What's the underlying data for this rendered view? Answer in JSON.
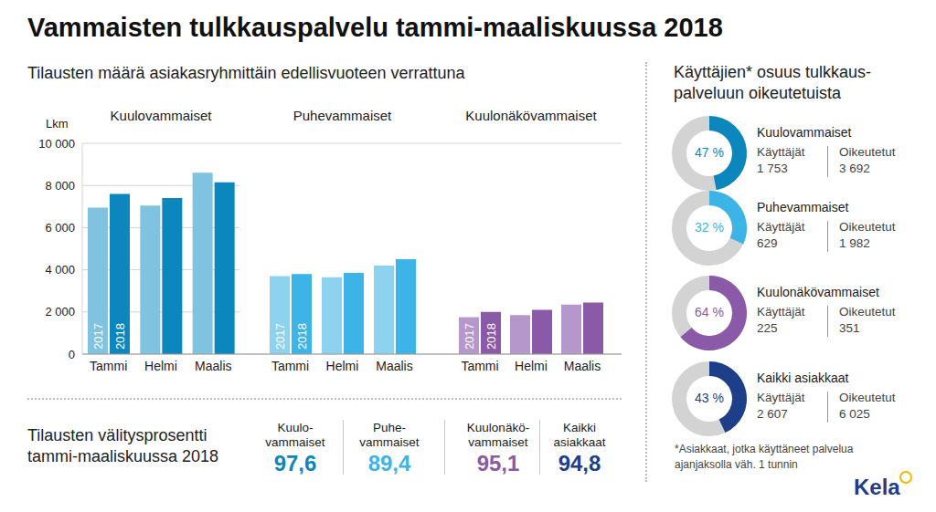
{
  "title": "Vammaisten tulkkauspalvelu tammi-maaliskuussa 2018",
  "orders_heading": "Tilausten määrä asiakasryhmittäin edellisvuoteen verrattuna",
  "chart_data": [
    {
      "type": "bar",
      "title": "Kuulovammaiset",
      "y_label": "Lkm",
      "categories": [
        "Tammi",
        "Helmi",
        "Maalis"
      ],
      "series": [
        {
          "name": "2017",
          "color": "#80c3e0",
          "values": [
            6950,
            7050,
            8600
          ]
        },
        {
          "name": "2018",
          "color": "#0b87bd",
          "values": [
            7600,
            7400,
            8150
          ]
        }
      ],
      "ylim": [
        0,
        10000
      ],
      "yticks": [
        0,
        {
          "value": 2000,
          "label": "2 000"
        },
        {
          "value": 4000,
          "label": "4 000"
        },
        {
          "value": 6000,
          "label": "6 000"
        },
        {
          "value": 8000,
          "label": "8 000"
        },
        {
          "value": 10000,
          "label": "10 000"
        }
      ],
      "grid": true
    },
    {
      "type": "bar",
      "title": "Puhevammaiset",
      "categories": [
        "Tammi",
        "Helmi",
        "Maalis"
      ],
      "series": [
        {
          "name": "2017",
          "color": "#8dd3f0",
          "values": [
            3700,
            3650,
            4200
          ]
        },
        {
          "name": "2018",
          "color": "#3db4e8",
          "values": [
            3800,
            3850,
            4500
          ]
        }
      ],
      "ylim": [
        0,
        10000
      ],
      "yticks": [
        0,
        2000,
        4000,
        6000,
        8000,
        10000
      ],
      "grid": true,
      "tick_labels": "x"
    },
    {
      "type": "bar",
      "title": "Kuulonäkövammaiset",
      "categories": [
        "Tammi",
        "Helmi",
        "Maalis"
      ],
      "series": [
        {
          "name": "2017",
          "color": "#b597cc",
          "values": [
            1750,
            1850,
            2350
          ]
        },
        {
          "name": "2018",
          "color": "#8a5aa8",
          "values": [
            2000,
            2100,
            2450
          ]
        }
      ],
      "ylim": [
        0,
        10000
      ],
      "yticks": [
        0,
        2000,
        4000,
        6000,
        8000,
        10000
      ],
      "grid": true,
      "tick_labels": "x"
    },
    {
      "type": "pie",
      "title": "Kuulovammaiset",
      "values": [
        47
      ],
      "value_labels": [
        "47 %"
      ],
      "color": "#0b87bd",
      "annotations": [
        {
          "label": "Käyttäjät",
          "value": "1 753"
        },
        {
          "label": "Oikeutetut",
          "value": "3 692"
        }
      ]
    },
    {
      "type": "pie",
      "title": "Puhevammaiset",
      "values": [
        32
      ],
      "value_labels": [
        "32 %"
      ],
      "color": "#3db4e8",
      "annotations": [
        {
          "label": "Käyttäjät",
          "value": "629"
        },
        {
          "label": "Oikeutetut",
          "value": "1 982"
        }
      ]
    },
    {
      "type": "pie",
      "title": "Kuulonäkövammaiset",
      "values": [
        64
      ],
      "value_labels": [
        "64 %"
      ],
      "color": "#8a5aa8",
      "annotations": [
        {
          "label": "Käyttäjät",
          "value": "225"
        },
        {
          "label": "Oikeutetut",
          "value": "351"
        }
      ]
    },
    {
      "type": "pie",
      "title": "Kaikki asiakkaat",
      "values": [
        43
      ],
      "value_labels": [
        "43 %"
      ],
      "color": "#1d3f8a",
      "annotations": [
        {
          "label": "Käyttäjät",
          "value": "2 607"
        },
        {
          "label": "Oikeutetut",
          "value": "6 025"
        }
      ]
    }
  ],
  "users_heading": [
    "Käyttäjien* osuus tulkkaus-",
    "palveluun oikeutetuista"
  ],
  "footnote": [
    "*Asiakkaat, jotka käyttäneet palvelua",
    "ajanjaksolla väh. 1 tunnin"
  ],
  "brokerage": {
    "heading": [
      "Tilausten välitysprosentti",
      "tammi-maaliskuussa 2018"
    ],
    "items": [
      {
        "label": [
          "Kuulo-",
          "vammaiset"
        ],
        "value": "97,6",
        "color": "#0b87bd"
      },
      {
        "label": [
          "Puhe-",
          "vammaiset"
        ],
        "value": "89,4",
        "color": "#3db4e8"
      },
      {
        "label": [
          "Kuulonäkö-",
          "vammaiset"
        ],
        "value": "95,1",
        "color": "#8a5aa8"
      },
      {
        "label": [
          "Kaikki",
          "asiakkaat"
        ],
        "value": "94,8",
        "color": "#1d3f8a"
      }
    ]
  },
  "logo": "Kela"
}
